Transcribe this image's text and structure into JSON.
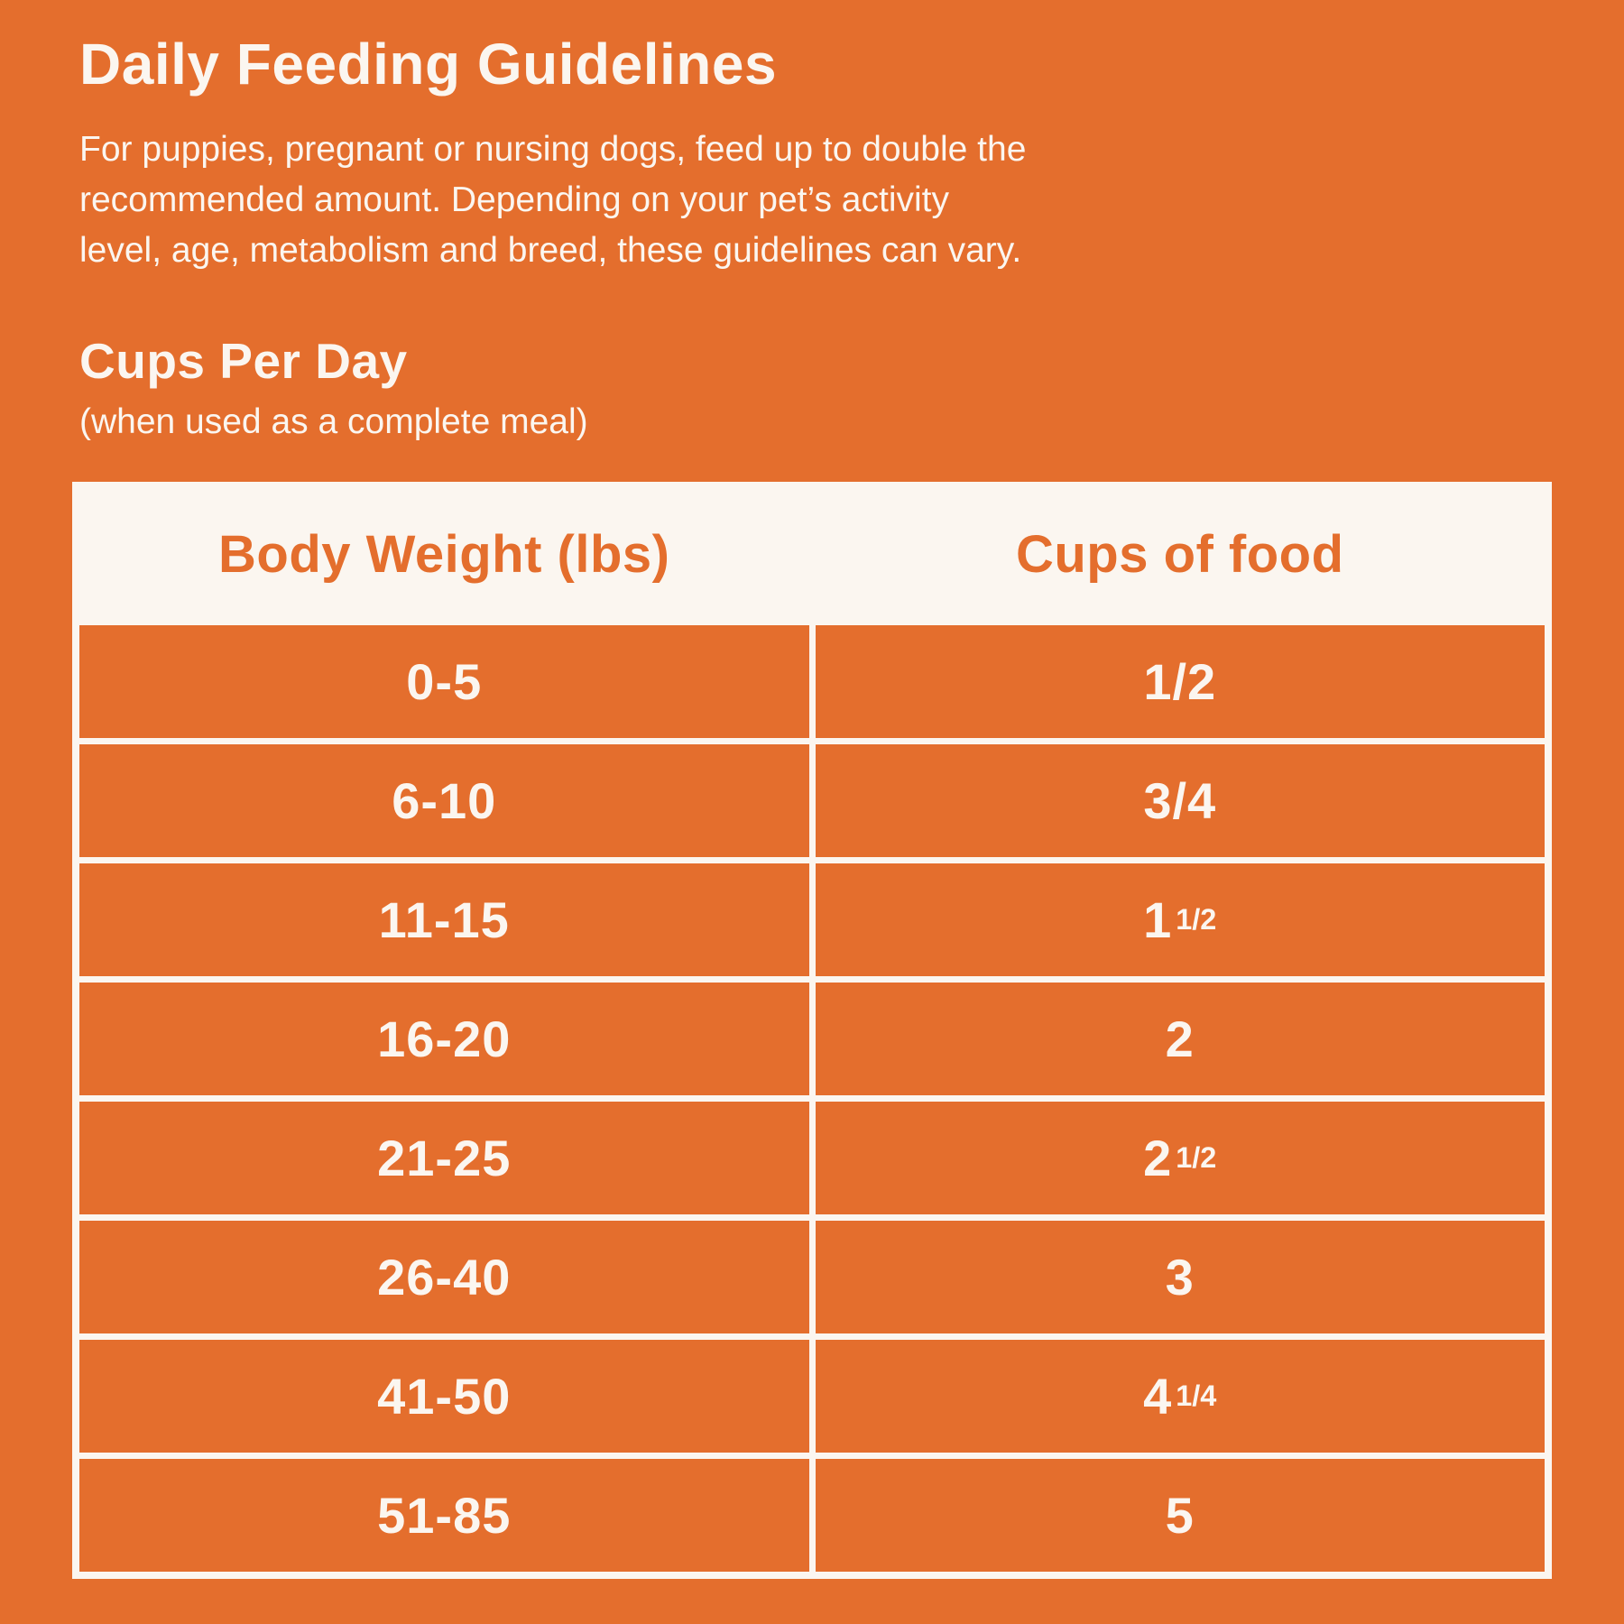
{
  "colors": {
    "bg": "#E46E2D",
    "surface": "#FBF6F0",
    "accent_text": "#E46E2D",
    "light_text": "#FBF6F0"
  },
  "page": {
    "title": "Daily Feeding Guidelines",
    "intro_lines": [
      "For puppies, pregnant or nursing dogs, feed up to double the",
      "recommended amount. Depending on your pet’s activity",
      "level, age, metabolism and breed, these guidelines can vary."
    ],
    "section_title": "Cups Per Day",
    "section_subtitle": "(when used as a complete meal)"
  },
  "table": {
    "columns": [
      "Body Weight (lbs)",
      "Cups of food"
    ],
    "rows": [
      {
        "weight": "0-5",
        "cups_main": "1/2",
        "cups_frac": ""
      },
      {
        "weight": "6-10",
        "cups_main": "3/4",
        "cups_frac": ""
      },
      {
        "weight": "11-15",
        "cups_main": "1",
        "cups_frac": "1/2"
      },
      {
        "weight": "16-20",
        "cups_main": "2",
        "cups_frac": ""
      },
      {
        "weight": "21-25",
        "cups_main": "2",
        "cups_frac": "1/2"
      },
      {
        "weight": "26-40",
        "cups_main": "3",
        "cups_frac": ""
      },
      {
        "weight": "41-50",
        "cups_main": "4",
        "cups_frac": "1/4"
      },
      {
        "weight": "51-85",
        "cups_main": "5",
        "cups_frac": ""
      }
    ]
  }
}
